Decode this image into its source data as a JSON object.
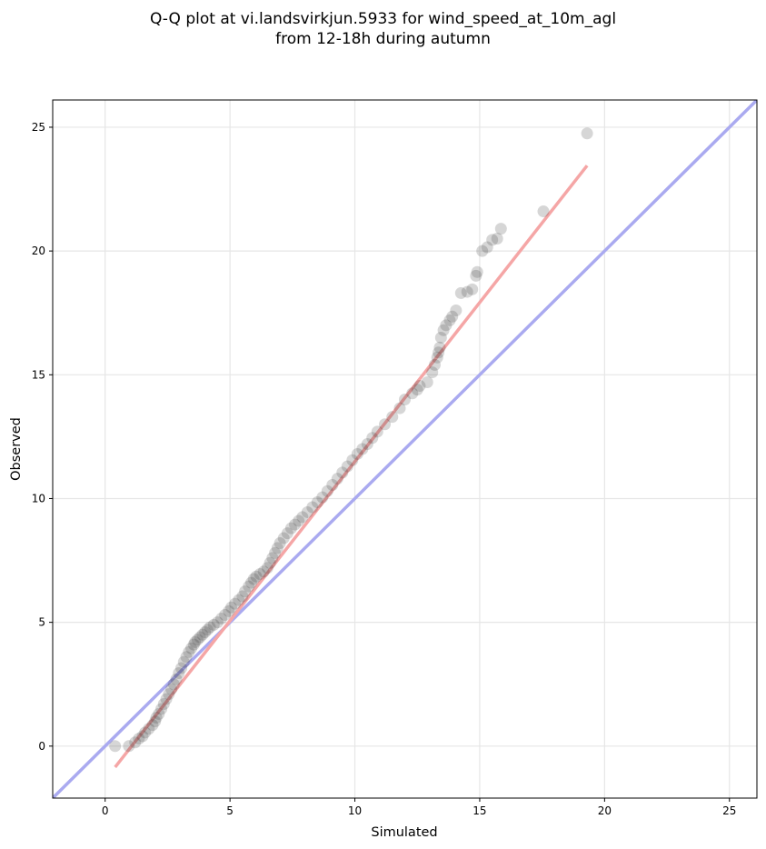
{
  "chart_data": {
    "type": "scatter",
    "title_line1": "Q-Q plot at vi.landsvirkjun.5933 for wind_speed_at_10m_agl",
    "title_line2": "from 12-18h during autumn",
    "xlabel": "Simulated",
    "ylabel": "Observed",
    "xlim": [
      -2.1,
      26.1
    ],
    "ylim": [
      -2.1,
      26.1
    ],
    "xticks": [
      0,
      5,
      10,
      15,
      20,
      25
    ],
    "yticks": [
      0,
      5,
      10,
      15,
      20,
      25
    ],
    "xtick_labels": [
      "0",
      "5",
      "10",
      "15",
      "20",
      "25"
    ],
    "ytick_labels": [
      "0",
      "5",
      "10",
      "15",
      "20",
      "25"
    ],
    "grid": true,
    "reference_line": {
      "name": "1:1",
      "x": [
        -2.1,
        26.1
      ],
      "y": [
        -2.1,
        26.1
      ],
      "color": "#aaaaf0"
    },
    "fit_line": {
      "x": [
        0.4,
        19.3
      ],
      "y": [
        -0.85,
        23.45
      ],
      "color": "#f5a6a6"
    },
    "points": {
      "color": "#333333",
      "x": [
        0.4,
        0.95,
        1.2,
        1.35,
        1.5,
        1.6,
        1.75,
        1.9,
        2.0,
        2.05,
        2.15,
        2.25,
        2.35,
        2.45,
        2.55,
        2.65,
        2.75,
        2.85,
        2.95,
        3.05,
        3.15,
        3.25,
        3.35,
        3.45,
        3.55,
        3.6,
        3.7,
        3.8,
        3.9,
        4.0,
        4.1,
        4.2,
        4.35,
        4.5,
        4.65,
        4.8,
        4.95,
        5.05,
        5.2,
        5.35,
        5.5,
        5.6,
        5.75,
        5.85,
        5.95,
        6.05,
        6.2,
        6.35,
        6.5,
        6.6,
        6.7,
        6.8,
        6.9,
        7.0,
        7.15,
        7.3,
        7.45,
        7.6,
        7.75,
        7.9,
        8.1,
        8.3,
        8.5,
        8.7,
        8.9,
        9.1,
        9.3,
        9.5,
        9.7,
        9.9,
        10.1,
        10.3,
        10.5,
        10.7,
        10.9,
        11.2,
        11.5,
        11.8,
        12.0,
        12.3,
        12.5,
        12.6,
        12.9,
        13.1,
        13.2,
        13.3,
        13.35,
        13.4,
        13.45,
        13.55,
        13.65,
        13.8,
        13.9,
        14.05,
        14.25,
        14.5,
        14.7,
        14.85,
        14.9,
        15.1,
        15.3,
        15.5,
        15.7,
        15.85,
        17.55,
        19.3
      ],
      "y": [
        0.0,
        0.0,
        0.15,
        0.3,
        0.4,
        0.55,
        0.7,
        0.85,
        1.0,
        1.15,
        1.3,
        1.5,
        1.7,
        1.9,
        2.1,
        2.3,
        2.5,
        2.7,
        2.95,
        3.15,
        3.4,
        3.6,
        3.8,
        3.95,
        4.1,
        4.2,
        4.3,
        4.4,
        4.5,
        4.6,
        4.7,
        4.8,
        4.9,
        5.0,
        5.15,
        5.3,
        5.45,
        5.6,
        5.75,
        5.9,
        6.05,
        6.25,
        6.45,
        6.6,
        6.75,
        6.85,
        6.95,
        7.05,
        7.2,
        7.4,
        7.6,
        7.8,
        8.0,
        8.2,
        8.4,
        8.6,
        8.8,
        8.95,
        9.1,
        9.25,
        9.45,
        9.65,
        9.85,
        10.05,
        10.3,
        10.55,
        10.8,
        11.05,
        11.3,
        11.55,
        11.8,
        12.0,
        12.2,
        12.45,
        12.7,
        13.0,
        13.3,
        13.65,
        14.0,
        14.25,
        14.4,
        14.55,
        14.7,
        15.1,
        15.4,
        15.7,
        15.9,
        16.1,
        16.5,
        16.8,
        17.0,
        17.2,
        17.35,
        17.6,
        18.3,
        18.35,
        18.45,
        19.0,
        19.15,
        20.0,
        20.15,
        20.45,
        20.5,
        20.9,
        21.6,
        24.75
      ]
    }
  }
}
